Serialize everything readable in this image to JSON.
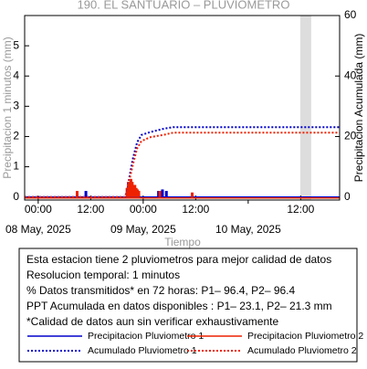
{
  "chart_data": {
    "type": "line",
    "title": "190. EL SANTUARIO – PLUVIOMETRO",
    "ylabel": "Precipitacion 1 minutos (mm)",
    "y2label": "Precipitacion Acumulada (mm)",
    "xlabel": "Tiempo",
    "xlim": [
      -3.1,
      68.9
    ],
    "xticks": [
      {
        "value": 0,
        "label": "00:00"
      },
      {
        "value": 12,
        "label": "12:00"
      },
      {
        "value": 24,
        "label": "00:00"
      },
      {
        "value": 36,
        "label": "12:00"
      },
      {
        "value": 60,
        "label": "12:00"
      }
    ],
    "xdate_labels": [
      {
        "value": 0,
        "label": "08 May, 2025"
      },
      {
        "value": 24,
        "label": "09 May, 2025"
      },
      {
        "value": 48,
        "label": "10 May, 2025"
      }
    ],
    "ylim": [
      -0.1,
      6
    ],
    "yticks": [
      0,
      1,
      2,
      3,
      4,
      5
    ],
    "y2lim": [
      -1,
      60
    ],
    "y2ticks": [
      0,
      20,
      40,
      60
    ],
    "shaded_x": [
      59.9,
      62.4
    ],
    "series": [
      {
        "name": "Precipitacion Pluviometro 1",
        "type": "bar",
        "color": "#0000cc",
        "x": [
          10.9,
          21.0,
          21.5,
          22.2,
          27.5,
          28.4,
          29.3
        ],
        "values": [
          0.2,
          0.3,
          0.4,
          0.2,
          0.2,
          0.25,
          0.2
        ]
      },
      {
        "name": "Precipitacion Pluviometro 2",
        "type": "bar",
        "color": "#ee2200",
        "x": [
          8.9,
          20.3,
          20.6,
          20.9,
          21.2,
          21.5,
          21.8,
          22.1,
          22.4,
          22.7,
          23.0,
          27.8,
          35.2
        ],
        "values": [
          0.2,
          0.3,
          0.5,
          0.4,
          0.6,
          0.5,
          0.35,
          0.4,
          0.3,
          0.25,
          0.2,
          0.2,
          0.15
        ]
      },
      {
        "name": "Acumulado Pluviometro 1",
        "type": "line",
        "style": "dotted",
        "axis": "y2",
        "color": "#0000cc",
        "x": [
          -3.1,
          19.8,
          20.3,
          20.9,
          21.7,
          22.6,
          23.6,
          25.7,
          28.8,
          30.9,
          68.9
        ],
        "values": [
          0,
          0,
          2,
          7,
          13,
          18,
          20.5,
          21.5,
          22.6,
          23.1,
          23.1
        ]
      },
      {
        "name": "Acumulado Pluviometro 2",
        "type": "line",
        "style": "dotted",
        "axis": "y2",
        "color": "#ee2200",
        "x": [
          -3.1,
          19.8,
          20.3,
          20.9,
          21.7,
          22.6,
          23.6,
          25.7,
          28.8,
          30.9,
          68.9
        ],
        "values": [
          0,
          0,
          1.5,
          6,
          11,
          16,
          18.5,
          19.8,
          20.6,
          21.3,
          21.3
        ]
      }
    ],
    "notes": [
      "Esta estacion tiene 2 pluviometros para mejor calidad de datos",
      "Resolucion temporal: 1 minutos",
      "% Datos transmitidos* en 72 horas: P1– 96.4, P2– 96.4",
      "PPT Acumulada en datos disponibles : P1– 23.1, P2– 21.3 mm",
      "*Calidad de datos aun sin verificar exhaustivamente"
    ]
  }
}
